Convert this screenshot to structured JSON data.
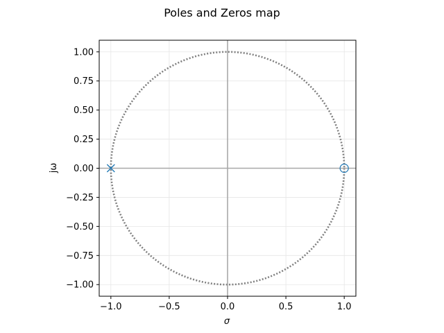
{
  "chart_data": {
    "type": "scatter",
    "title": "Poles and Zeros map",
    "xlabel": "σ",
    "ylabel": "jω",
    "xlim": [
      -1.1,
      1.1
    ],
    "ylim": [
      -1.1,
      1.1
    ],
    "xticks": [
      -1.0,
      -0.5,
      0.0,
      0.5,
      1.0
    ],
    "xtick_labels": [
      "−1.0",
      "−0.5",
      "0.0",
      "0.5",
      "1.0"
    ],
    "yticks": [
      1.0,
      0.75,
      0.5,
      0.25,
      0.0,
      -0.25,
      -0.5,
      -0.75,
      -1.0
    ],
    "ytick_labels": [
      "1.00",
      "0.75",
      "0.50",
      "0.25",
      "0.00",
      "−0.25",
      "−0.50",
      "−0.75",
      "−1.00"
    ],
    "grid": true,
    "unit_circle": {
      "radius": 1.0,
      "color": "#808080",
      "style": "dotted"
    },
    "poles": [
      {
        "re": -1.0,
        "im": 0.0
      }
    ],
    "zeros": [
      {
        "re": 1.0,
        "im": 0.0
      }
    ],
    "marker_color": "#1f77b4",
    "axis_line_color": "#a8a8a8"
  }
}
